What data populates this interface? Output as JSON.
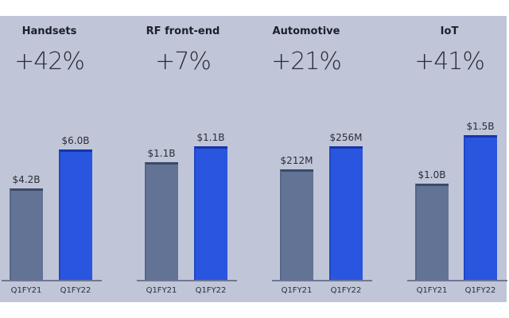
{
  "chart_data": [
    {
      "type": "bar",
      "title": "Handsets",
      "change": "+42%",
      "categories": [
        "Q1FY21",
        "Q1FY22"
      ],
      "values": [
        4.2,
        6.0
      ],
      "value_labels": [
        "$4.2B",
        "$6.0B"
      ],
      "unit": "$B"
    },
    {
      "type": "bar",
      "title": "RF front-end",
      "change": "+7%",
      "categories": [
        "Q1FY21",
        "Q1FY22"
      ],
      "values": [
        1.1,
        1.1
      ],
      "value_labels": [
        "$1.1B",
        "$1.1B"
      ],
      "unit": "$B"
    },
    {
      "type": "bar",
      "title": "Automotive",
      "change": "+21%",
      "categories": [
        "Q1FY21",
        "Q1FY22"
      ],
      "values": [
        212,
        256
      ],
      "value_labels": [
        "$212M",
        "$256M"
      ],
      "unit": "$M"
    },
    {
      "type": "bar",
      "title": "IoT",
      "change": "+41%",
      "categories": [
        "Q1FY21",
        "Q1FY22"
      ],
      "values": [
        1.0,
        1.5
      ],
      "value_labels": [
        "$1.0B",
        "$1.5B"
      ],
      "unit": "$B"
    }
  ],
  "colors": {
    "background": "#c0c6d8",
    "prior_year": "#627395",
    "current_year": "#2a55df"
  }
}
